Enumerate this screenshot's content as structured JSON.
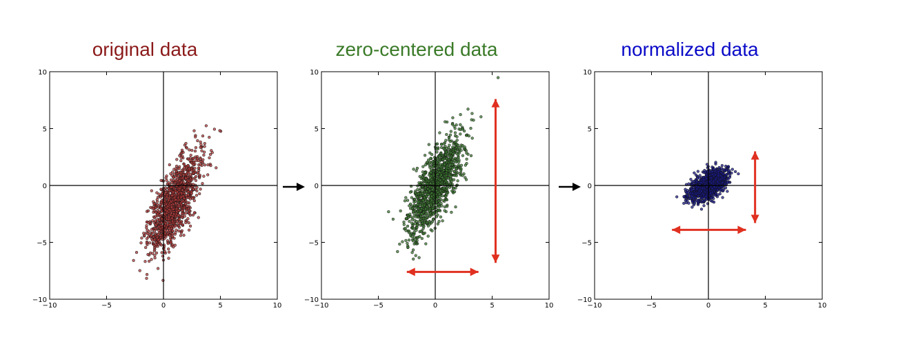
{
  "chart_data": [
    {
      "type": "scatter",
      "title": "original data",
      "title_color": "#8b1a1a",
      "point_fill": "#b23a3a",
      "xlim": [
        -10,
        10
      ],
      "ylim": [
        -10,
        10
      ],
      "xticks": [
        "−10",
        "−5",
        "0",
        "5",
        "10"
      ],
      "yticks": [
        "10",
        "5",
        "0",
        "−5",
        "−10"
      ],
      "grid": false,
      "n_points": 1200,
      "mean": [
        1.0,
        -1.5
      ],
      "std_major": 5.2,
      "std_minor": 0.75,
      "angle_deg": 66,
      "seed": 7,
      "arrows": null
    },
    {
      "type": "scatter",
      "title": "zero-centered data",
      "title_color": "#3a7a28",
      "point_fill": "#3d7a32",
      "xlim": [
        -10,
        10
      ],
      "ylim": [
        -10,
        10
      ],
      "xticks": [
        "−10",
        "−5",
        "0",
        "5",
        "10"
      ],
      "yticks": [
        "10",
        "5",
        "0",
        "−5",
        "−10"
      ],
      "grid": false,
      "n_points": 1200,
      "mean": [
        0,
        0
      ],
      "std_major": 5.2,
      "std_minor": 0.75,
      "angle_deg": 66,
      "seed": 11,
      "arrows": [
        {
          "x1": -2.5,
          "y1": -7.6,
          "x2": 3.8,
          "y2": -7.6
        },
        {
          "x1": 5.3,
          "y1": 7.6,
          "x2": 5.3,
          "y2": -6.8
        }
      ]
    },
    {
      "type": "scatter",
      "title": "normalized data",
      "title_color": "#0a0ac8",
      "point_fill": "#1a1a8c",
      "xlim": [
        -10,
        10
      ],
      "ylim": [
        -10,
        10
      ],
      "xticks": [
        "−10",
        "−5",
        "0",
        "5",
        "10"
      ],
      "yticks": [
        "10",
        "5",
        "0",
        "−5",
        "−10"
      ],
      "grid": false,
      "n_points": 1200,
      "mean": [
        0,
        0
      ],
      "std_major": 2.0,
      "std_minor": 0.5,
      "angle_deg": 35,
      "seed": 23,
      "arrows": [
        {
          "x1": -3.2,
          "y1": -3.9,
          "x2": 3.3,
          "y2": -3.9
        },
        {
          "x1": 4.1,
          "y1": 3.0,
          "x2": 4.1,
          "y2": -3.3
        }
      ]
    }
  ],
  "colors": {
    "arrow": "#e03020",
    "axis": "#000000"
  },
  "step_icons": [
    "right-arrow-icon",
    "right-arrow-icon"
  ]
}
